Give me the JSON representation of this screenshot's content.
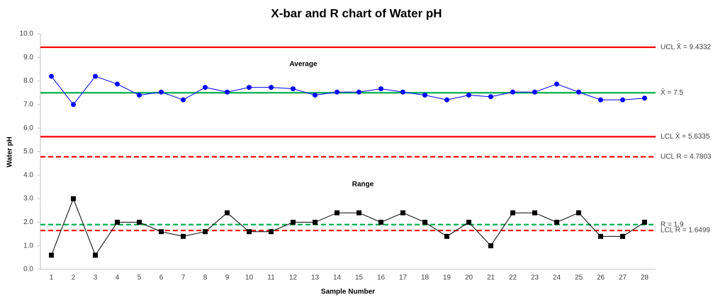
{
  "chart_data": {
    "type": "line",
    "title": "X-bar and R chart of Water pH",
    "x_label": "Sample Number",
    "y_label": "Water pH",
    "categories": [
      "1",
      "2",
      "3",
      "4",
      "5",
      "6",
      "7",
      "8",
      "9",
      "10",
      "11",
      "12",
      "13",
      "14",
      "15",
      "16",
      "17",
      "18",
      "19",
      "20",
      "21",
      "22",
      "23",
      "24",
      "25",
      "26",
      "27",
      "28"
    ],
    "ylim": [
      0,
      10
    ],
    "yticks": [
      {
        "value": 0,
        "label": "0.0"
      },
      {
        "value": 1,
        "label": "1.0"
      },
      {
        "value": 2,
        "label": "2.0"
      },
      {
        "value": 3,
        "label": "3.0"
      },
      {
        "value": 4,
        "label": "4.0"
      },
      {
        "value": 5,
        "label": "5.0"
      },
      {
        "value": 6,
        "label": "6.0"
      },
      {
        "value": 7,
        "label": "7.0"
      },
      {
        "value": 8,
        "label": "8.0"
      },
      {
        "value": 9,
        "label": "9.0"
      },
      {
        "value": 10,
        "label": "10.0"
      }
    ],
    "grid": false,
    "series": [
      {
        "name": "Average",
        "color": "#0000ff",
        "marker": "circle",
        "values": [
          8.2,
          7.0,
          8.2,
          7.87,
          7.4,
          7.53,
          7.2,
          7.73,
          7.53,
          7.73,
          7.73,
          7.67,
          7.4,
          7.53,
          7.53,
          7.67,
          7.53,
          7.4,
          7.2,
          7.4,
          7.33,
          7.53,
          7.53,
          7.87,
          7.53,
          7.2,
          7.2,
          7.27
        ]
      },
      {
        "name": "Range",
        "color": "#000000",
        "marker": "square",
        "values": [
          0.6,
          3.0,
          0.6,
          2.0,
          2.0,
          1.6,
          1.4,
          1.6,
          2.4,
          1.6,
          1.6,
          2.0,
          2.0,
          2.4,
          2.4,
          2.0,
          2.4,
          2.0,
          1.4,
          2.0,
          1.0,
          2.4,
          2.4,
          2.0,
          2.4,
          1.4,
          1.4,
          2.0
        ]
      }
    ],
    "reference_lines": [
      {
        "label": "UCL X̄ = 9.4332",
        "value": 9.4332,
        "color": "#ff0000",
        "dashed": false
      },
      {
        "label": "X̄ = 7.5",
        "value": 7.5,
        "color": "#00b050",
        "dashed": false
      },
      {
        "label": "LCL X̄ = 5.6335",
        "value": 5.6335,
        "color": "#ff0000",
        "dashed": false
      },
      {
        "label": "UCL R = 4.7803",
        "value": 4.7803,
        "color": "#ff0000",
        "dashed": true
      },
      {
        "label": "R = 1.9",
        "value": 1.9,
        "color": "#00b050",
        "dashed": true
      },
      {
        "label": "LCL R = 1.6499",
        "value": 1.6499,
        "color": "#ff0000",
        "dashed": true
      }
    ]
  }
}
